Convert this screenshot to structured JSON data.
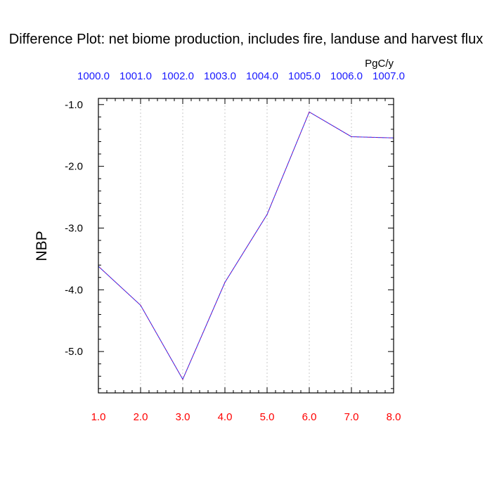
{
  "chart_data": {
    "type": "line",
    "title": "Difference Plot: net biome production, includes fire, landuse and harvest flux",
    "units": "PgC/y",
    "ylabel": "NBP",
    "x": [
      1,
      2,
      3,
      4,
      5,
      6,
      7,
      8
    ],
    "x_tick_labels": [
      "1.0",
      "2.0",
      "3.0",
      "4.0",
      "5.0",
      "6.0",
      "7.0",
      "8.0"
    ],
    "top_tick_labels": [
      "1000.0",
      "1001.0",
      "1002.0",
      "1003.0",
      "1004.0",
      "1005.0",
      "1006.0",
      "1007.0"
    ],
    "y_ticks": [
      -1.0,
      -2.0,
      -3.0,
      -4.0,
      -5.0
    ],
    "y_tick_labels": [
      "-1.0",
      "-2.0",
      "-3.0",
      "-4.0",
      "-5.0"
    ],
    "series": [
      {
        "values": [
          -3.62,
          -4.25,
          -5.45,
          -3.88,
          -2.78,
          -1.12,
          -1.52,
          -1.54
        ]
      }
    ],
    "xlim": [
      1,
      8
    ],
    "ylim": [
      -5.67,
      -0.9
    ],
    "grid": "vertical dotted",
    "colors": {
      "line": "#8000a0",
      "line_dash": "#3050ff",
      "top_ticks": "#1a1aff",
      "bottom_ticks": "#ff0000",
      "grid": "#c8c8c8"
    }
  }
}
